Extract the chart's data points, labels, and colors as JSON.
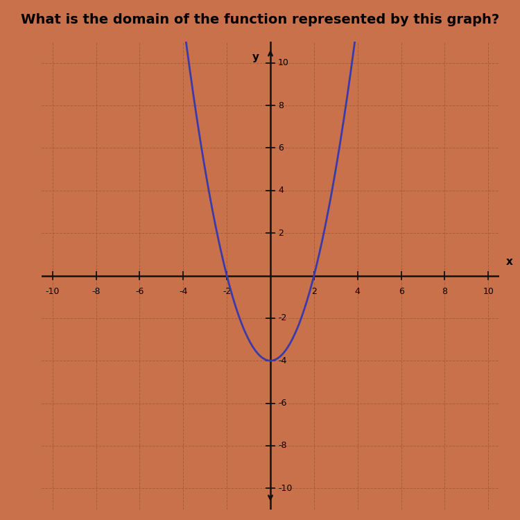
{
  "title": "What is the domain of the function represented by this graph?",
  "title_fontsize": 14,
  "background_color": "#c8714a",
  "grid_color": "#a85a30",
  "axis_color": "#111111",
  "curve_color": "#3a3aaa",
  "curve_linewidth": 2.0,
  "xlim": [
    -10.5,
    10.5
  ],
  "ylim": [
    -11.0,
    11.0
  ],
  "xticks": [
    -10,
    -8,
    -6,
    -4,
    -2,
    2,
    4,
    6,
    8,
    10
  ],
  "yticks": [
    -10,
    -8,
    -6,
    -4,
    -2,
    2,
    4,
    6,
    8,
    10
  ],
  "xlabel": "x",
  "ylabel": "y",
  "func_a": 1,
  "func_b": 0,
  "func_c": -4,
  "x_start": -3.87,
  "x_end": 3.87
}
